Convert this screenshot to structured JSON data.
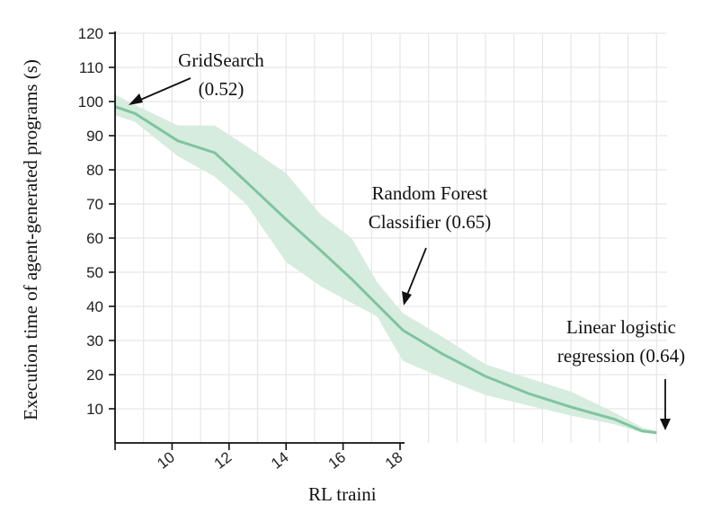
{
  "chart_data": {
    "type": "line",
    "xlabel": "RL traini",
    "ylabel": "Execution time of agent-generated programs (s)",
    "xlim": [
      8,
      27
    ],
    "ylim": [
      0,
      120
    ],
    "x_ticks": [
      "10",
      "12",
      "14",
      "16",
      "18"
    ],
    "y_ticks": [
      "120",
      "110",
      "100",
      "90",
      "80",
      "70",
      "60",
      "50",
      "40",
      "30",
      "20",
      "10"
    ],
    "grid": true,
    "series": [
      {
        "x": [
          8,
          8.7,
          10.2,
          11.5,
          12.6,
          14,
          15.2,
          16.3,
          17.2,
          18.1,
          19.5,
          21,
          22.5,
          24,
          25.5,
          26.5,
          27
        ],
        "values": [
          98.5,
          96.5,
          88.5,
          85,
          76.5,
          65.5,
          56.5,
          48,
          40.5,
          33,
          26,
          19.5,
          14.5,
          10.5,
          7,
          3.5,
          3
        ],
        "lower": [
          96,
          94,
          84,
          78,
          70,
          53,
          46,
          41,
          37,
          24,
          19,
          14,
          11,
          8,
          5.5,
          3,
          2.5
        ],
        "upper": [
          102,
          99,
          93,
          93,
          87,
          79,
          67,
          60,
          47,
          38,
          31,
          23,
          19,
          15,
          9,
          4.5,
          3.5
        ]
      }
    ],
    "annotations": [
      {
        "line1": "GridSearch",
        "line2": "(0.52)",
        "x": 8.4,
        "y": 98
      },
      {
        "line1": "Random Forest",
        "line2": "Classifier (0.65)",
        "x": 18.5,
        "y": 40
      },
      {
        "line1": "Linear logistic",
        "line2": "regression (0.64)",
        "x": 27,
        "y": 4
      }
    ],
    "colors": {
      "line": "#7fc4a1",
      "band": "#d6ecde",
      "grid": "#e6e6e6",
      "axis": "#111111"
    }
  }
}
